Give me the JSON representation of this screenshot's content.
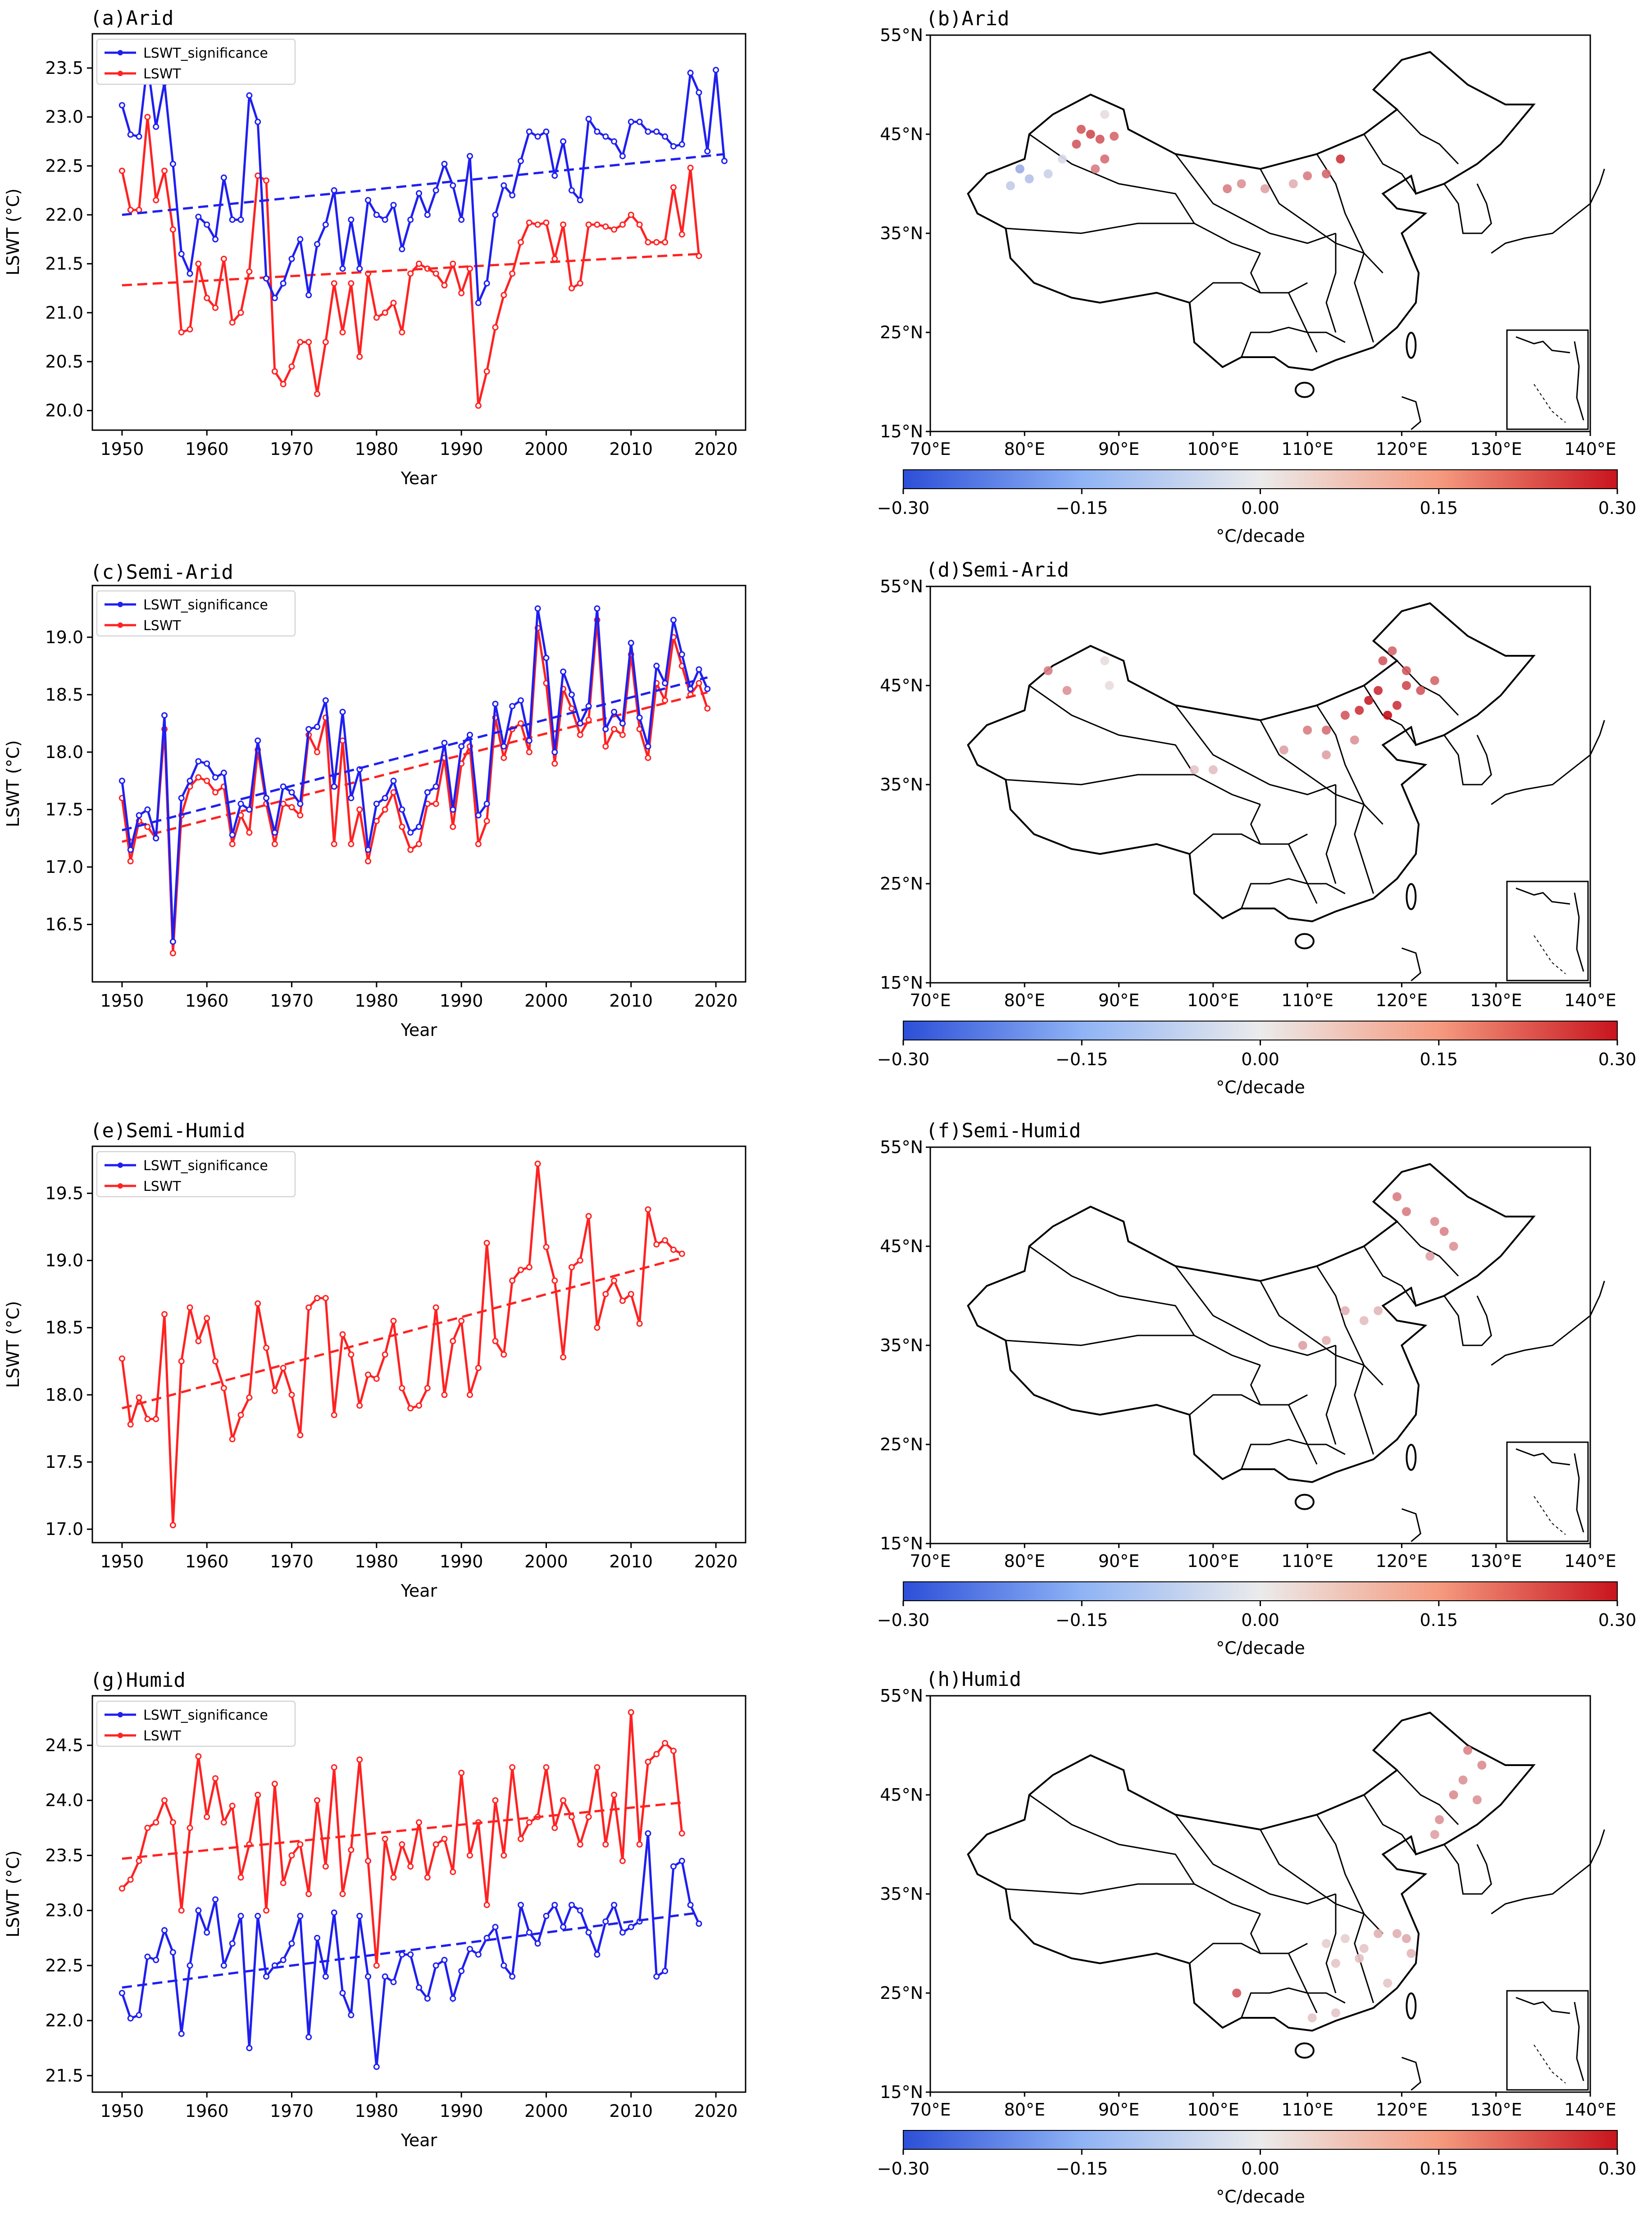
{
  "figure": {
    "x_label": "Year",
    "y_label": "LSWT (°C)",
    "legend": [
      "LSWT_significance",
      "LSWT"
    ],
    "colorbar": {
      "label": "°C/decade",
      "ticks": [
        "−0.30",
        "−0.15",
        "0.00",
        "0.15",
        "0.30"
      ],
      "vmin": -0.3,
      "vmax": 0.3
    },
    "map_lat_ticks": [
      "15°N",
      "25°N",
      "35°N",
      "45°N",
      "55°N"
    ],
    "map_lon_ticks": [
      "70°E",
      "80°E",
      "90°E",
      "100°E",
      "110°E",
      "120°E",
      "130°E",
      "140°E"
    ],
    "colors": {
      "sig": "#1f1ff0",
      "lswt": "#ff2222"
    }
  },
  "chart_data": [
    {
      "type": "line",
      "title": "(a)Arid",
      "xlabel": "Year",
      "ylabel": "LSWT (°C)",
      "xlim": [
        1946.5,
        2023.5
      ],
      "ylim": [
        19.8,
        23.85
      ],
      "xticks": [
        1950,
        1960,
        1970,
        1980,
        1990,
        2000,
        2010,
        2020
      ],
      "yticks": [
        20.0,
        20.5,
        21.0,
        21.5,
        22.0,
        22.5,
        23.0,
        23.5
      ],
      "x_start": 1950,
      "series": [
        {
          "name": "LSWT_significance",
          "color": "#1f1ff0",
          "values": [
            23.12,
            22.82,
            22.8,
            23.55,
            22.9,
            23.35,
            22.52,
            21.6,
            21.4,
            21.98,
            21.9,
            21.75,
            22.38,
            21.95,
            21.95,
            23.22,
            22.95,
            21.35,
            21.15,
            21.3,
            21.55,
            21.75,
            21.18,
            21.7,
            21.9,
            22.25,
            21.45,
            21.95,
            21.45,
            22.15,
            22.0,
            21.95,
            22.1,
            21.65,
            21.95,
            22.22,
            22.0,
            22.25,
            22.52,
            22.3,
            21.95,
            22.6,
            21.1,
            21.3,
            22.0,
            22.3,
            22.2,
            22.55,
            22.85,
            22.8,
            22.85,
            22.4,
            22.75,
            22.25,
            22.15,
            22.98,
            22.85,
            22.8,
            22.75,
            22.6,
            22.95,
            22.95,
            22.85,
            22.85,
            22.8,
            22.7,
            22.72,
            23.45,
            23.25,
            22.65,
            23.48,
            22.55
          ],
          "trend": [
            22.0,
            22.62
          ]
        },
        {
          "name": "LSWT",
          "color": "#ff2222",
          "values": [
            22.45,
            22.05,
            22.05,
            23.0,
            22.15,
            22.45,
            21.85,
            20.8,
            20.83,
            21.5,
            21.15,
            21.05,
            21.55,
            20.9,
            21.0,
            21.42,
            22.4,
            22.35,
            20.4,
            20.27,
            20.45,
            20.7,
            20.7,
            20.17,
            20.7,
            21.3,
            20.8,
            21.3,
            20.55,
            21.4,
            20.95,
            21.0,
            21.1,
            20.8,
            21.4,
            21.5,
            21.45,
            21.4,
            21.28,
            21.5,
            21.2,
            21.45,
            20.05,
            20.4,
            20.85,
            21.18,
            21.4,
            21.72,
            21.92,
            21.9,
            21.92,
            21.55,
            21.9,
            21.25,
            21.3,
            21.9,
            21.9,
            21.88,
            21.85,
            21.9,
            22.0,
            21.9,
            21.72,
            21.72,
            21.72,
            22.28,
            21.8,
            22.48,
            21.58
          ],
          "trend": [
            21.28,
            21.6
          ]
        }
      ]
    },
    {
      "type": "line",
      "title": "(c)Semi-Arid",
      "xlabel": "Year",
      "ylabel": "LSWT (°C)",
      "xlim": [
        1946.5,
        2023.5
      ],
      "ylim": [
        16.0,
        19.45
      ],
      "xticks": [
        1950,
        1960,
        1970,
        1980,
        1990,
        2000,
        2010,
        2020
      ],
      "yticks": [
        16.5,
        17.0,
        17.5,
        18.0,
        18.5,
        19.0
      ],
      "x_start": 1950,
      "series": [
        {
          "name": "LSWT_significance",
          "color": "#1f1ff0",
          "values": [
            17.75,
            17.15,
            17.45,
            17.5,
            17.25,
            18.32,
            16.35,
            17.6,
            17.75,
            17.92,
            17.9,
            17.78,
            17.82,
            17.28,
            17.55,
            17.5,
            18.1,
            17.6,
            17.3,
            17.7,
            17.65,
            17.55,
            18.2,
            18.22,
            18.45,
            17.7,
            18.35,
            17.6,
            17.85,
            17.15,
            17.55,
            17.6,
            17.75,
            17.5,
            17.3,
            17.35,
            17.65,
            17.7,
            18.08,
            17.5,
            18.05,
            18.15,
            17.45,
            17.55,
            18.42,
            18.05,
            18.4,
            18.45,
            18.1,
            19.25,
            18.82,
            18.0,
            18.7,
            18.5,
            18.25,
            18.4,
            19.25,
            18.2,
            18.35,
            18.25,
            18.95,
            18.3,
            18.05,
            18.75,
            18.6,
            19.15,
            18.85,
            18.55,
            18.72,
            18.55
          ],
          "trend": [
            17.32,
            18.65
          ]
        },
        {
          "name": "LSWT",
          "color": "#ff2222",
          "values": [
            17.6,
            17.05,
            17.4,
            17.35,
            17.25,
            18.2,
            16.25,
            17.45,
            17.7,
            17.78,
            17.75,
            17.65,
            17.7,
            17.2,
            17.45,
            17.3,
            18.02,
            17.55,
            17.2,
            17.55,
            17.52,
            17.45,
            18.15,
            18.0,
            18.3,
            17.2,
            18.1,
            17.2,
            17.5,
            17.05,
            17.4,
            17.5,
            17.65,
            17.35,
            17.15,
            17.2,
            17.55,
            17.55,
            17.95,
            17.35,
            17.9,
            18.05,
            17.2,
            17.4,
            18.3,
            17.95,
            18.2,
            18.25,
            18.0,
            19.08,
            18.6,
            17.9,
            18.55,
            18.38,
            18.15,
            18.28,
            19.15,
            18.05,
            18.2,
            18.15,
            18.85,
            18.2,
            17.95,
            18.6,
            18.45,
            19.0,
            18.75,
            18.5,
            18.6,
            18.38
          ],
          "trend": [
            17.22,
            18.52
          ]
        }
      ]
    },
    {
      "type": "line",
      "title": "(e)Semi-Humid",
      "xlabel": "Year",
      "ylabel": "LSWT (°C)",
      "xlim": [
        1946.5,
        2023.5
      ],
      "ylim": [
        16.9,
        19.85
      ],
      "xticks": [
        1950,
        1960,
        1970,
        1980,
        1990,
        2000,
        2010,
        2020
      ],
      "yticks": [
        17.0,
        17.5,
        18.0,
        18.5,
        19.0,
        19.5
      ],
      "x_start": 1950,
      "series": [
        {
          "name": "LSWT_significance",
          "color": "#1f1ff0",
          "values": [],
          "trend": null
        },
        {
          "name": "LSWT",
          "color": "#ff2222",
          "values": [
            18.27,
            17.78,
            17.98,
            17.82,
            17.82,
            18.6,
            17.03,
            18.25,
            18.65,
            18.4,
            18.57,
            18.25,
            18.05,
            17.67,
            17.85,
            17.98,
            18.68,
            18.35,
            18.03,
            18.2,
            18.0,
            17.7,
            18.65,
            18.72,
            18.72,
            17.85,
            18.45,
            18.3,
            17.92,
            18.15,
            18.12,
            18.3,
            18.55,
            18.05,
            17.9,
            17.92,
            18.05,
            18.65,
            18.0,
            18.4,
            18.55,
            18.0,
            18.2,
            19.13,
            18.4,
            18.3,
            18.85,
            18.93,
            18.95,
            19.72,
            19.1,
            18.85,
            18.28,
            18.95,
            19.0,
            19.33,
            18.5,
            18.75,
            18.85,
            18.7,
            18.75,
            18.53,
            19.38,
            19.12,
            19.15,
            19.08,
            19.05
          ],
          "trend": [
            17.9,
            19.02
          ]
        }
      ]
    },
    {
      "type": "line",
      "title": "(g)Humid",
      "xlabel": "Year",
      "ylabel": "LSWT (°C)",
      "xlim": [
        1946.5,
        2023.5
      ],
      "ylim": [
        21.35,
        24.95
      ],
      "xticks": [
        1950,
        1960,
        1970,
        1980,
        1990,
        2000,
        2010,
        2020
      ],
      "yticks": [
        21.5,
        22.0,
        22.5,
        23.0,
        23.5,
        24.0,
        24.5
      ],
      "x_start": 1950,
      "series": [
        {
          "name": "LSWT_significance",
          "color": "#1f1ff0",
          "values": [
            22.25,
            22.02,
            22.05,
            22.58,
            22.55,
            22.82,
            22.62,
            21.88,
            22.5,
            23.0,
            22.8,
            23.1,
            22.5,
            22.7,
            22.95,
            21.75,
            22.95,
            22.4,
            22.5,
            22.55,
            22.7,
            22.95,
            21.85,
            22.75,
            22.4,
            22.98,
            22.25,
            22.05,
            22.95,
            22.4,
            21.58,
            22.4,
            22.35,
            22.6,
            22.6,
            22.3,
            22.2,
            22.5,
            22.55,
            22.2,
            22.45,
            22.65,
            22.6,
            22.75,
            22.85,
            22.5,
            22.4,
            23.05,
            22.8,
            22.7,
            22.95,
            23.05,
            22.85,
            23.05,
            23.0,
            22.8,
            22.6,
            22.9,
            23.05,
            22.8,
            22.85,
            22.9,
            23.7,
            22.4,
            22.45,
            23.4,
            23.45,
            23.05,
            22.88
          ],
          "trend": [
            22.3,
            22.98
          ]
        },
        {
          "name": "LSWT",
          "color": "#ff2222",
          "values": [
            23.2,
            23.28,
            23.45,
            23.75,
            23.8,
            24.0,
            23.8,
            23.0,
            23.75,
            24.4,
            23.85,
            24.2,
            23.8,
            23.95,
            23.3,
            23.6,
            24.05,
            23.0,
            24.15,
            23.25,
            23.5,
            23.6,
            23.15,
            24.0,
            23.4,
            24.3,
            23.15,
            23.55,
            24.37,
            23.45,
            22.5,
            23.65,
            23.3,
            23.6,
            23.4,
            23.8,
            23.3,
            23.6,
            23.65,
            23.35,
            24.25,
            23.5,
            23.8,
            23.05,
            24.0,
            23.5,
            24.3,
            23.65,
            23.8,
            23.85,
            24.3,
            23.75,
            24.0,
            23.85,
            23.6,
            23.85,
            24.3,
            23.6,
            24.05,
            23.45,
            24.8,
            23.6,
            24.35,
            24.42,
            24.52,
            24.45,
            23.7
          ],
          "trend": [
            23.47,
            23.98
          ]
        }
      ]
    }
  ],
  "maps": [
    {
      "title": "(b)Arid",
      "points": [
        [
          79.5,
          41.5,
          -0.12
        ],
        [
          80.5,
          40.5,
          -0.08
        ],
        [
          78.5,
          39.8,
          -0.06
        ],
        [
          82.5,
          41.0,
          -0.05
        ],
        [
          84.0,
          42.5,
          -0.03
        ],
        [
          88.5,
          47.0,
          0.02
        ],
        [
          86.0,
          45.5,
          0.2
        ],
        [
          87.0,
          45.0,
          0.22
        ],
        [
          88.0,
          44.5,
          0.2
        ],
        [
          89.5,
          44.8,
          0.18
        ],
        [
          88.5,
          42.5,
          0.17
        ],
        [
          87.5,
          41.5,
          0.15
        ],
        [
          85.5,
          44.0,
          0.2
        ],
        [
          101.5,
          39.5,
          0.15
        ],
        [
          103.0,
          40.0,
          0.12
        ],
        [
          105.5,
          39.5,
          0.1
        ],
        [
          108.5,
          40.0,
          0.08
        ],
        [
          110.0,
          40.8,
          0.15
        ],
        [
          112.0,
          41.0,
          0.18
        ],
        [
          113.5,
          42.5,
          0.25
        ]
      ]
    },
    {
      "title": "(d)Semi-Arid",
      "points": [
        [
          82.5,
          46.5,
          0.15
        ],
        [
          84.5,
          44.5,
          0.12
        ],
        [
          88.5,
          47.5,
          0.02
        ],
        [
          89.0,
          45.0,
          0.02
        ],
        [
          98.0,
          36.5,
          0.05
        ],
        [
          100.0,
          36.5,
          0.06
        ],
        [
          107.5,
          38.5,
          0.1
        ],
        [
          110.0,
          40.5,
          0.15
        ],
        [
          112.0,
          40.5,
          0.17
        ],
        [
          114.0,
          42.0,
          0.2
        ],
        [
          115.5,
          42.5,
          0.25
        ],
        [
          116.5,
          43.5,
          0.28
        ],
        [
          117.5,
          44.5,
          0.26
        ],
        [
          118.5,
          42.0,
          0.3
        ],
        [
          119.5,
          43.0,
          0.25
        ],
        [
          120.5,
          45.0,
          0.22
        ],
        [
          118.0,
          47.5,
          0.2
        ],
        [
          119.0,
          48.5,
          0.18
        ],
        [
          120.5,
          46.5,
          0.2
        ],
        [
          122.0,
          44.5,
          0.2
        ],
        [
          123.5,
          45.5,
          0.18
        ],
        [
          115.0,
          39.5,
          0.12
        ],
        [
          112.0,
          38.0,
          0.1
        ]
      ]
    },
    {
      "title": "(f)Semi-Humid",
      "points": [
        [
          119.5,
          50.0,
          0.15
        ],
        [
          120.5,
          48.5,
          0.15
        ],
        [
          123.5,
          47.5,
          0.13
        ],
        [
          124.5,
          46.5,
          0.14
        ],
        [
          125.5,
          45.0,
          0.12
        ],
        [
          123.0,
          44.0,
          0.1
        ],
        [
          114.0,
          38.5,
          0.08
        ],
        [
          116.0,
          37.5,
          0.06
        ],
        [
          117.5,
          38.5,
          0.07
        ],
        [
          112.0,
          35.5,
          0.08
        ],
        [
          109.5,
          35.0,
          0.1
        ]
      ]
    },
    {
      "title": "(h)Humid",
      "points": [
        [
          127.0,
          49.5,
          0.14
        ],
        [
          128.5,
          48.0,
          0.13
        ],
        [
          126.5,
          46.5,
          0.12
        ],
        [
          125.5,
          45.0,
          0.13
        ],
        [
          128.0,
          44.5,
          0.12
        ],
        [
          124.0,
          42.5,
          0.12
        ],
        [
          123.5,
          41.0,
          0.1
        ],
        [
          112.0,
          30.0,
          0.04
        ],
        [
          114.0,
          30.5,
          0.04
        ],
        [
          116.0,
          29.5,
          0.05
        ],
        [
          117.5,
          31.0,
          0.08
        ],
        [
          119.5,
          31.0,
          0.08
        ],
        [
          120.5,
          30.5,
          0.09
        ],
        [
          115.5,
          28.5,
          0.06
        ],
        [
          113.0,
          28.0,
          0.05
        ],
        [
          118.5,
          26.0,
          0.05
        ],
        [
          121.0,
          29.0,
          0.07
        ],
        [
          102.5,
          25.0,
          0.2
        ],
        [
          110.5,
          22.5,
          0.05
        ],
        [
          113.0,
          23.0,
          0.05
        ]
      ]
    }
  ]
}
